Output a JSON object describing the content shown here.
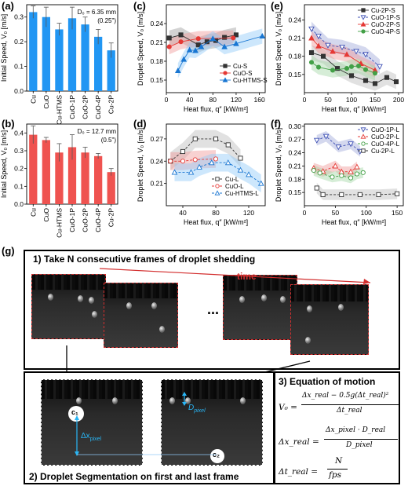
{
  "panel_labels": {
    "a": "(a)",
    "b": "(b)",
    "c": "(c)",
    "d": "(d)",
    "e": "(e)",
    "f": "(f)",
    "g": "(g)"
  },
  "chart_data": [
    {
      "id": "a",
      "type": "bar",
      "categories": [
        "Cu",
        "CuO",
        "Cu-HTMS",
        "CuO-1P",
        "CuO-2P",
        "CuO-4P",
        "Cu-2P"
      ],
      "values": [
        0.32,
        0.3,
        0.25,
        0.295,
        0.27,
        0.22,
        0.165
      ],
      "errors": [
        0.025,
        0.04,
        0.025,
        0.045,
        0.03,
        0.03,
        0.03
      ],
      "ylabel": "Initial Speed, V₀ [m/s]",
      "ylim": [
        0,
        0.35
      ],
      "yticks": [
        0.0,
        0.1,
        0.2,
        0.3
      ],
      "annotation": "D₀ = 6.35 mm",
      "annotation2": "(0.25\")",
      "color": "#2196f3"
    },
    {
      "id": "b",
      "type": "bar",
      "categories": [
        "Cu",
        "CuO",
        "Cu-HTMS",
        "CuO-1P",
        "CuO-2P",
        "CuO-4P",
        "Cu-2P"
      ],
      "values": [
        0.39,
        0.36,
        0.29,
        0.32,
        0.29,
        0.27,
        0.18
      ],
      "errors": [
        0.05,
        0.015,
        0.05,
        0.07,
        0.03,
        0.015,
        0.02
      ],
      "ylabel": "Initial Speed, V₀ [m/s]",
      "ylim": [
        0,
        0.45
      ],
      "yticks": [
        0.0,
        0.1,
        0.2,
        0.3,
        0.4
      ],
      "annotation": "D₀ = 12.7 mm",
      "annotation2": "(0.5\")",
      "color": "#ef5350"
    },
    {
      "id": "c",
      "type": "line",
      "ylabel": "Droplet Speed, V₀ [m/s]",
      "xlabel": "Heat flux, q″ [kW/m²]",
      "xlim": [
        0,
        170
      ],
      "ylim": [
        0.13,
        0.27
      ],
      "xticks": [
        0,
        40,
        80,
        120,
        160
      ],
      "yticks": [
        0.15,
        0.18,
        0.21,
        0.24
      ],
      "series": [
        {
          "name": "Cu-S",
          "color": "#333333",
          "marker": "square",
          "fill": "#333333",
          "shade": "#9e9e9e",
          "x": [
            5,
            25,
            55,
            70,
            85,
            100,
            120
          ],
          "y": [
            0.217,
            0.222,
            0.206,
            0.211,
            0.213,
            0.218,
            0.222
          ]
        },
        {
          "name": "CuO-S",
          "color": "#e53935",
          "marker": "circle",
          "fill": "#e53935",
          "shade": "#ef9a9a",
          "x": [
            5,
            25,
            55,
            115
          ],
          "y": [
            0.203,
            0.211,
            0.216,
            0.217
          ]
        },
        {
          "name": "Cu-HTMS-S",
          "color": "#1976d2",
          "marker": "triangle",
          "fill": "#1976d2",
          "shade": "#90caf9",
          "x": [
            20,
            30,
            40,
            50,
            60,
            80,
            100,
            120,
            165
          ],
          "y": [
            0.165,
            0.183,
            0.198,
            0.197,
            0.203,
            0.216,
            0.203,
            0.208,
            0.22
          ]
        }
      ]
    },
    {
      "id": "d",
      "type": "line",
      "ylabel": "Droplet Speed, V₀ [m/s]",
      "xlabel": "Heat flux, q″ [kW/m²]",
      "xlim": [
        20,
        140
      ],
      "ylim": [
        0.18,
        0.29
      ],
      "xticks": [
        40,
        80,
        120
      ],
      "yticks": [
        0.21,
        0.24,
        0.27
      ],
      "series": [
        {
          "name": "Cu-L",
          "color": "#333333",
          "marker": "square",
          "fill": "none",
          "shade": "#bdbdbd",
          "x": [
            25,
            40,
            55,
            80,
            95,
            110
          ],
          "y": [
            0.24,
            0.253,
            0.27,
            0.27,
            0.262,
            0.244
          ]
        },
        {
          "name": "CuO-L",
          "color": "#e53935",
          "marker": "circle",
          "fill": "none",
          "shade": "#ef9a9a",
          "x": [
            25,
            40,
            55,
            80
          ],
          "y": [
            0.24,
            0.24,
            0.242,
            0.243
          ]
        },
        {
          "name": "Cu-HTMS-L",
          "color": "#1976d2",
          "marker": "triangle",
          "fill": "none",
          "shade": "#90caf9",
          "x": [
            30,
            50,
            60,
            75,
            95,
            110,
            120,
            135
          ],
          "y": [
            0.225,
            0.225,
            0.232,
            0.238,
            0.238,
            0.228,
            0.222,
            0.21
          ]
        }
      ]
    },
    {
      "id": "e",
      "type": "line",
      "ylabel": "Droplet Speed, V₀ [m/s]",
      "xlabel": "Heat flux, q″ [kW/m²]",
      "xlim": [
        0,
        210
      ],
      "ylim": [
        0.12,
        0.265
      ],
      "xticks": [
        0,
        50,
        100,
        150,
        200
      ],
      "yticks": [
        0.15,
        0.18,
        0.21,
        0.24
      ],
      "series": [
        {
          "name": "Cu-2P-S",
          "color": "#333333",
          "marker": "square",
          "fill": "#333333",
          "shade": "#bdbdbd",
          "x": [
            15,
            40,
            70,
            100,
            130,
            150,
            175,
            195
          ],
          "y": [
            0.186,
            0.18,
            0.16,
            0.148,
            0.14,
            0.135,
            0.145,
            0.138
          ]
        },
        {
          "name": "CuO-1P-S",
          "color": "#3f51b5",
          "marker": "triangle-down",
          "fill": "none",
          "shade": "#9fa8da",
          "x": [
            15,
            30,
            50,
            80,
            110,
            130,
            160
          ],
          "y": [
            0.225,
            0.213,
            0.198,
            0.195,
            0.188,
            0.183,
            0.163
          ]
        },
        {
          "name": "CuO-2P-S",
          "color": "#e53935",
          "marker": "triangle",
          "fill": "#e53935",
          "shade": "#ef9a9a",
          "x": [
            15,
            30,
            60,
            90,
            120,
            150
          ],
          "y": [
            0.21,
            0.197,
            0.188,
            0.183,
            0.168,
            0.157
          ]
        },
        {
          "name": "CuO-4P-S",
          "color": "#43a047",
          "marker": "circle",
          "fill": "#43a047",
          "shade": "#a5d6a7",
          "x": [
            15,
            30,
            60,
            90,
            100,
            115,
            130,
            150
          ],
          "y": [
            0.17,
            0.162,
            0.157,
            0.16,
            0.163,
            0.164,
            0.158,
            0.152
          ]
        }
      ]
    },
    {
      "id": "f",
      "type": "line",
      "ylabel": "Droplet Speed, V₀ [m/s]",
      "xlabel": "Heat flux, q″ [kW/m²]",
      "xlim": [
        0,
        160
      ],
      "ylim": [
        0.12,
        0.305
      ],
      "xticks": [
        0,
        50,
        100,
        150
      ],
      "yticks": [
        0.15,
        0.18,
        0.21,
        0.24,
        0.27,
        0.3
      ],
      "series": [
        {
          "name": "CuO-1P-L",
          "color": "#3f51b5",
          "marker": "triangle-down",
          "fill": "none",
          "shade": "#9fa8da",
          "x": [
            20,
            35,
            55,
            75,
            90
          ],
          "y": [
            0.268,
            0.277,
            0.253,
            0.26,
            0.243
          ]
        },
        {
          "name": "CuO-2P-L",
          "color": "#e53935",
          "marker": "triangle",
          "fill": "none",
          "shade": "#ef9a9a",
          "x": [
            15,
            30,
            50,
            60,
            75,
            85
          ],
          "y": [
            0.205,
            0.198,
            0.21,
            0.197,
            0.197,
            0.208
          ]
        },
        {
          "name": "CuO-4P-L",
          "color": "#43a047",
          "marker": "circle",
          "fill": "none",
          "shade": "#a5d6a7",
          "x": [
            15,
            25,
            45,
            60,
            75,
            85,
            95
          ],
          "y": [
            0.2,
            0.194,
            0.185,
            0.188,
            0.183,
            0.192,
            0.195
          ]
        },
        {
          "name": "Cu-2P-L",
          "color": "#333333",
          "marker": "square",
          "fill": "none",
          "shade": "#bdbdbd",
          "x": [
            20,
            30,
            60,
            90,
            120,
            150
          ],
          "y": [
            0.16,
            0.145,
            0.145,
            0.145,
            0.145,
            0.147
          ]
        }
      ]
    }
  ],
  "schematic": {
    "step1_title": "1) Take N consecutive frames of droplet shedding",
    "time_label": "time",
    "ellipsis": "...",
    "step2_title": "2) Droplet Segmentation on first and last frame",
    "c1": "c₁",
    "c2": "c₂",
    "dx_label": "Δx",
    "dx_sub": "pixel",
    "d_label": "D",
    "d_sub": "pixel",
    "step3_title": "3) Equation of motion",
    "eq1_lhs": "V₀ =",
    "eq1_num": "Δx_real − 0.5g(Δt_real)²",
    "eq1_den": "Δt_real",
    "eq2_lhs": "Δx_real =",
    "eq2_num": "Δx_pixel · D_real",
    "eq2_den": "D_pixel",
    "eq3_lhs": "Δt_real =",
    "eq3_num": "N",
    "eq3_den": "fps"
  }
}
